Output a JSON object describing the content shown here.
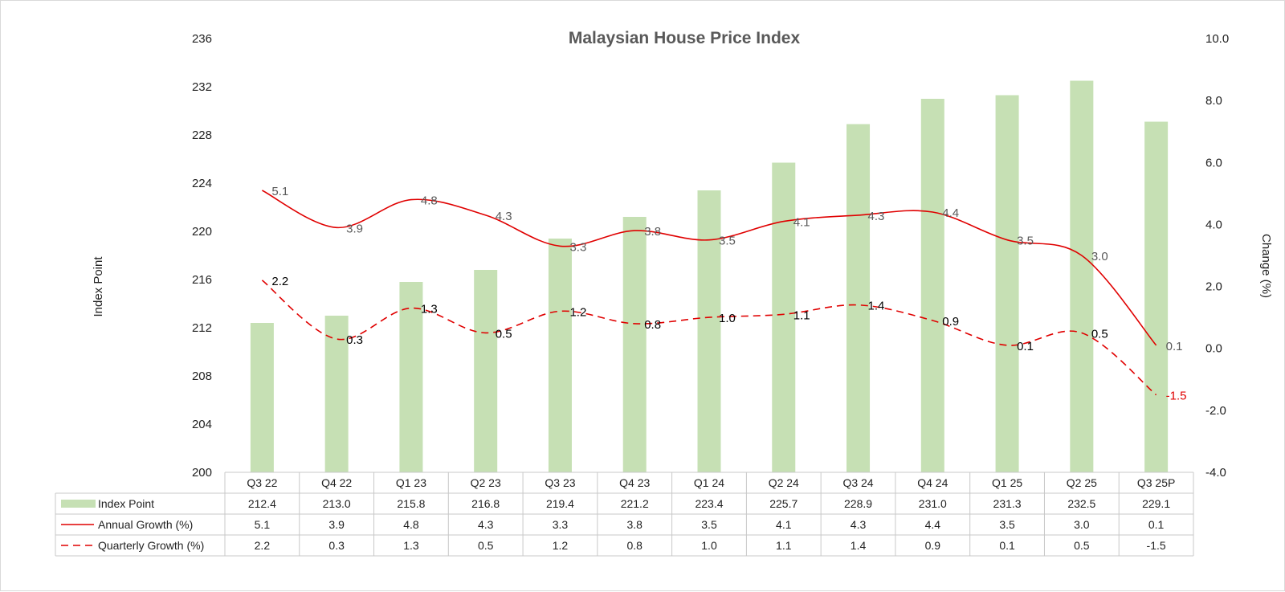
{
  "chart_data": {
    "type": "bar",
    "title": "Malaysian House Price Index",
    "ylabel_left": "Index Point",
    "ylabel_right": "Change (%)",
    "ylim_left": [
      200,
      236
    ],
    "yticks_left": [
      "200",
      "204",
      "208",
      "212",
      "216",
      "220",
      "224",
      "228",
      "232",
      "236"
    ],
    "ylim_right": [
      -4,
      10
    ],
    "yticks_right": [
      "-4.0",
      "-2.0",
      "0.0",
      "2.0",
      "4.0",
      "6.0",
      "8.0",
      "10.0"
    ],
    "categories": [
      "Q3 22",
      "Q4 22",
      "Q1 23",
      "Q2 23",
      "Q3 23",
      "Q4 23",
      "Q1 24",
      "Q2 24",
      "Q3 24",
      "Q4 24",
      "Q1 25",
      "Q2 25",
      "Q3 25P"
    ],
    "series": [
      {
        "name": "Index Point",
        "type": "bar",
        "axis": "left",
        "color": "#c6e0b4",
        "values": [
          212.4,
          213.0,
          215.8,
          216.8,
          219.4,
          221.2,
          223.4,
          225.7,
          228.9,
          231.0,
          231.3,
          232.5,
          229.1
        ],
        "labels": [
          "212.4",
          "213.0",
          "215.8",
          "216.8",
          "219.4",
          "221.2",
          "223.4",
          "225.7",
          "228.9",
          "231.0",
          "231.3",
          "232.5",
          "229.1"
        ]
      },
      {
        "name": "Annual Growth (%)",
        "type": "line",
        "axis": "right",
        "color": "#e00000",
        "line_style": "solid",
        "values": [
          5.1,
          3.9,
          4.8,
          4.3,
          3.3,
          3.8,
          3.5,
          4.1,
          4.3,
          4.4,
          3.5,
          3.0,
          0.1
        ],
        "labels": [
          "5.1",
          "3.9",
          "4.8",
          "4.3",
          "3.3",
          "3.8",
          "3.5",
          "4.1",
          "4.3",
          "4.4",
          "3.5",
          "3.0",
          "0.1"
        ]
      },
      {
        "name": "Quarterly  Growth (%)",
        "type": "line",
        "axis": "right",
        "color": "#e00000",
        "line_style": "dashed",
        "values": [
          2.2,
          0.3,
          1.3,
          0.5,
          1.2,
          0.8,
          1.0,
          1.1,
          1.4,
          0.9,
          0.1,
          0.5,
          -1.5
        ],
        "labels": [
          "2.2",
          "0.3",
          "1.3",
          "0.5",
          "1.2",
          "0.8",
          "1.0",
          "1.1",
          "1.4",
          "0.9",
          "0.1",
          "0.5",
          "-1.5"
        ]
      }
    ],
    "grid": false,
    "legend": "data-table"
  }
}
